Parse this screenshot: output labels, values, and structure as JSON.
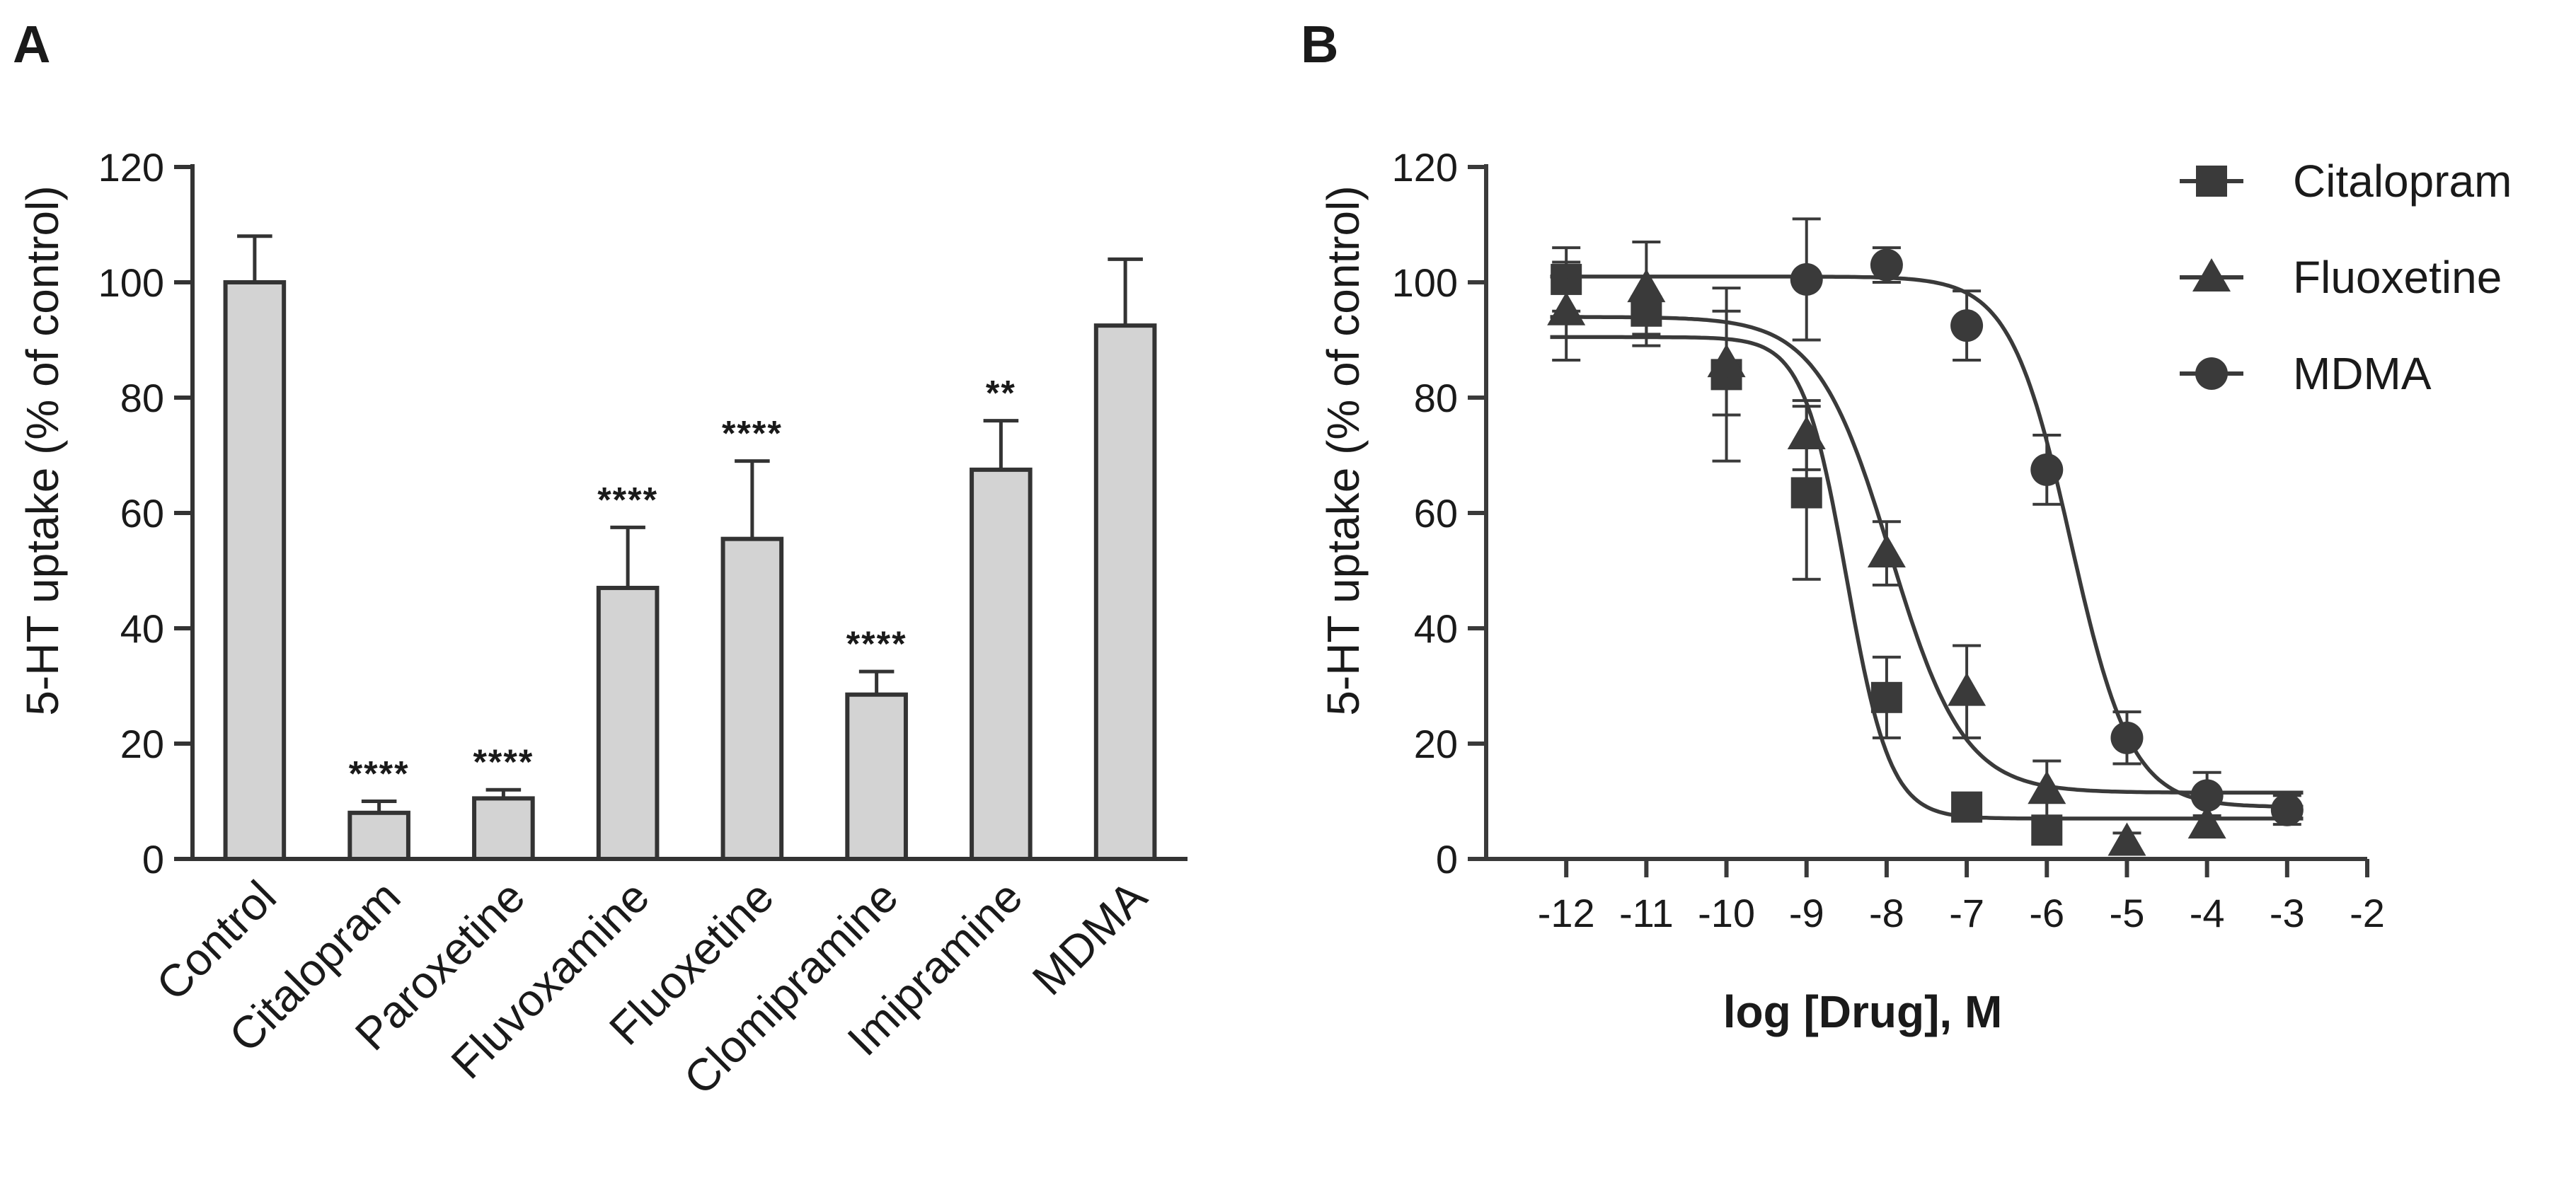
{
  "panel_a_label": "A",
  "panel_b_label": "B",
  "chart_data": [
    {
      "type": "bar",
      "panel": "A",
      "ylabel": "5-HT uptake (% of control)",
      "xlabel": "",
      "ylim": [
        0,
        120
      ],
      "yticks": [
        0,
        20,
        40,
        60,
        80,
        100,
        120
      ],
      "categories": [
        "Control",
        "Citalopram",
        "Paroxetine",
        "Fluvoxamine",
        "Fluoxetine",
        "Clomipramine",
        "Imipramine",
        "MDMA"
      ],
      "values": [
        100,
        8,
        10.5,
        47,
        55.5,
        28.5,
        67.5,
        92.5
      ],
      "errors": [
        8,
        2,
        1.5,
        10.5,
        13.5,
        4,
        8.5,
        11.5
      ],
      "significance": [
        "",
        "****",
        "****",
        "****",
        "****",
        "****",
        "**",
        ""
      ],
      "bar_color": "#d3d3d3",
      "edge_color": "#333333"
    },
    {
      "type": "scatter",
      "panel": "B",
      "xlabel": "log [Drug], M",
      "ylabel": "5-HT uptake (% of control)",
      "xlim": [
        -13,
        -2
      ],
      "ylim": [
        0,
        120
      ],
      "xticks": [
        -12,
        -11,
        -10,
        -9,
        -8,
        -7,
        -6,
        -5,
        -4,
        -3,
        -2
      ],
      "yticks": [
        0,
        20,
        40,
        60,
        80,
        100,
        120
      ],
      "series": [
        {
          "name": "Citalopram",
          "marker": "square",
          "x": [
            -12,
            -11,
            -10,
            -9,
            -8,
            -7,
            -6
          ],
          "y": [
            100.5,
            95,
            84,
            63.5,
            28,
            9,
            5
          ],
          "err": [
            5.5,
            6,
            15,
            15,
            7,
            2,
            1.5
          ],
          "fit": {
            "top": 90.5,
            "bottom": 7,
            "logIC50": -8.5,
            "hill": 1.6
          }
        },
        {
          "name": "Fluoxetine",
          "marker": "triangle",
          "x": [
            -12,
            -11,
            -10,
            -9,
            -8,
            -7,
            -6,
            -5,
            -4
          ],
          "y": [
            95,
            99,
            86,
            73.5,
            53,
            29,
            12,
            3,
            6
          ],
          "err": [
            8.5,
            8,
            9,
            6,
            5.5,
            8,
            5,
            1.5,
            1.5
          ],
          "fit": {
            "top": 94,
            "bottom": 11.5,
            "logIC50": -7.95,
            "hill": 0.95
          }
        },
        {
          "name": "MDMA",
          "marker": "circle",
          "x": [
            -9,
            -8,
            -7,
            -6,
            -5,
            -4,
            -3
          ],
          "y": [
            100.5,
            103,
            92.5,
            67.5,
            21,
            11,
            8.5
          ],
          "err": [
            10.5,
            3,
            6,
            6,
            4.5,
            4,
            2.5
          ],
          "fit": {
            "top": 101,
            "bottom": 9,
            "logIC50": -5.7,
            "hill": 1.15
          }
        }
      ],
      "legend": [
        "Citalopram",
        "Fluoxetine",
        "MDMA"
      ],
      "color": "#3a3a3a"
    }
  ]
}
